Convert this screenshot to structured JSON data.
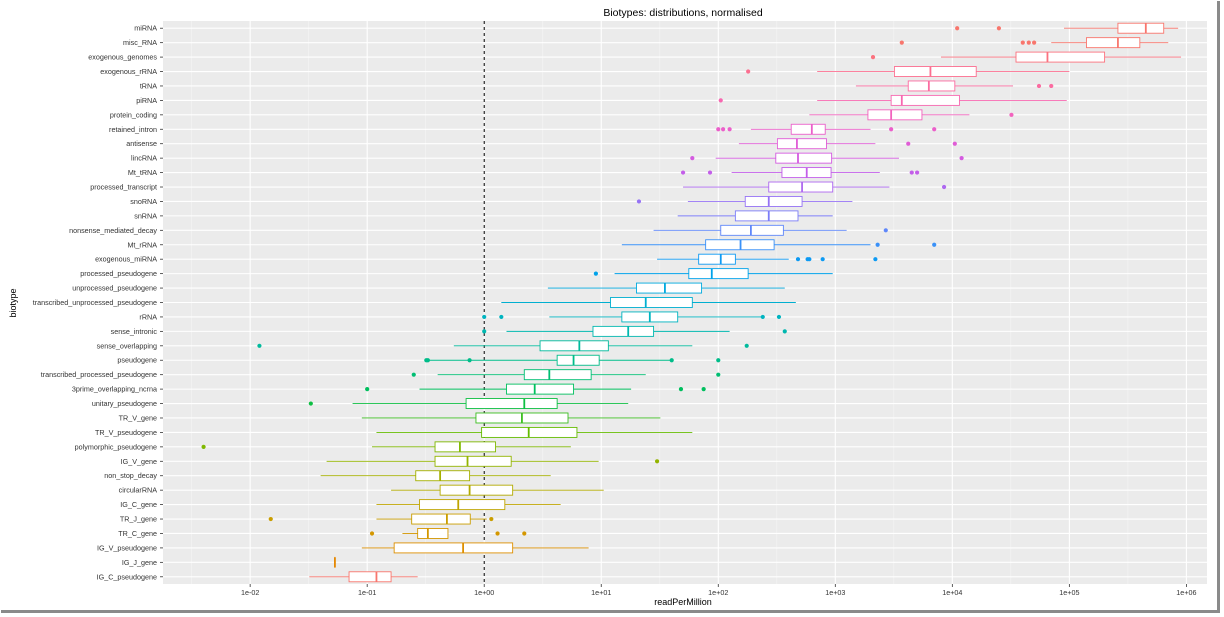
{
  "chart_data": {
    "type": "boxplot",
    "title": "Biotypes: distributions, normalised",
    "xlabel": "readPerMillion",
    "ylabel": "biotype",
    "x_scale": "log10",
    "xlim": [
      0.0018,
      1500000
    ],
    "x_ticks": [
      {
        "value": 0.01,
        "label": "1e-02"
      },
      {
        "value": 0.1,
        "label": "1e-01"
      },
      {
        "value": 1,
        "label": "1e+00"
      },
      {
        "value": 10,
        "label": "1e+01"
      },
      {
        "value": 100,
        "label": "1e+02"
      },
      {
        "value": 1000,
        "label": "1e+03"
      },
      {
        "value": 10000,
        "label": "1e+04"
      },
      {
        "value": 100000,
        "label": "1e+05"
      },
      {
        "value": 1000000,
        "label": "1e+06"
      }
    ],
    "reference_line": {
      "x": 1,
      "style": "dashed"
    },
    "grid": true,
    "legend": "none",
    "background": "#EBEBEB",
    "categories": [
      {
        "name": "miRNA",
        "color": "#F8766D",
        "min": 90000,
        "q1": 260000,
        "median": 450000,
        "q3": 640000,
        "max": 850000,
        "outliers": [
          11000,
          25000
        ]
      },
      {
        "name": "misc_RNA",
        "color": "#F8766D",
        "min": 70000,
        "q1": 140000,
        "median": 260000,
        "q3": 400000,
        "max": 700000,
        "outliers": [
          3700,
          40000,
          45000,
          50000
        ]
      },
      {
        "name": "exogenous_genomes",
        "color": "#FB727F",
        "min": 8000,
        "q1": 35000,
        "median": 65000,
        "q3": 200000,
        "max": 900000,
        "outliers": [
          2100
        ]
      },
      {
        "name": "exogenous_rRNA",
        "color": "#FC6F90",
        "min": 700,
        "q1": 3200,
        "median": 6500,
        "q3": 16000,
        "max": 100000,
        "outliers": [
          180
        ]
      },
      {
        "name": "tRNA",
        "color": "#FB6CA1",
        "min": 1500,
        "q1": 4200,
        "median": 6300,
        "q3": 10500,
        "max": 33000,
        "outliers": [
          55000,
          70000
        ]
      },
      {
        "name": "piRNA",
        "color": "#F767B0",
        "min": 700,
        "q1": 3000,
        "median": 3700,
        "q3": 11500,
        "max": 95000,
        "outliers": [
          105
        ]
      },
      {
        "name": "protein_coding",
        "color": "#F263BE",
        "min": 600,
        "q1": 1900,
        "median": 3000,
        "q3": 5500,
        "max": 14000,
        "outliers": [
          32000
        ]
      },
      {
        "name": "retained_intron",
        "color": "#EB5FCA",
        "min": 190,
        "q1": 420,
        "median": 630,
        "q3": 820,
        "max": 2000,
        "outliers": [
          100,
          110,
          125,
          3000,
          7000
        ]
      },
      {
        "name": "antisense",
        "color": "#E05CD6",
        "min": 150,
        "q1": 320,
        "median": 470,
        "q3": 840,
        "max": 2200,
        "outliers": [
          4200,
          10500
        ]
      },
      {
        "name": "lincRNA",
        "color": "#D45BE0",
        "min": 95,
        "q1": 310,
        "median": 480,
        "q3": 930,
        "max": 3500,
        "outliers": [
          60,
          12000
        ]
      },
      {
        "name": "Mt_tRNA",
        "color": "#C35EE9",
        "min": 130,
        "q1": 350,
        "median": 570,
        "q3": 920,
        "max": 2400,
        "outliers": [
          50,
          85,
          4500,
          5000
        ]
      },
      {
        "name": "processed_transcript",
        "color": "#AE68F0",
        "min": 50,
        "q1": 270,
        "median": 520,
        "q3": 950,
        "max": 2900,
        "outliers": [
          8500
        ]
      },
      {
        "name": "snoRNA",
        "color": "#9673F5",
        "min": 55,
        "q1": 170,
        "median": 270,
        "q3": 520,
        "max": 1400,
        "outliers": [
          21
        ]
      },
      {
        "name": "snRNA",
        "color": "#7C7DF8",
        "min": 45,
        "q1": 140,
        "median": 270,
        "q3": 480,
        "max": 950,
        "outliers": []
      },
      {
        "name": "nonsense_mediated_decay",
        "color": "#5F87FA",
        "min": 28,
        "q1": 105,
        "median": 190,
        "q3": 360,
        "max": 1250,
        "outliers": [
          2700
        ]
      },
      {
        "name": "Mt_rRNA",
        "color": "#3A91F8",
        "min": 15,
        "q1": 78,
        "median": 155,
        "q3": 300,
        "max": 2000,
        "outliers": [
          2300,
          7000
        ]
      },
      {
        "name": "exogenous_miRNA",
        "color": "#0D9AF3",
        "min": 30,
        "q1": 68,
        "median": 105,
        "q3": 140,
        "max": 400,
        "outliers": [
          480,
          580,
          600,
          780,
          2200
        ]
      },
      {
        "name": "processed_pseudogene",
        "color": "#00A2EA",
        "min": 13,
        "q1": 56,
        "median": 88,
        "q3": 180,
        "max": 950,
        "outliers": [
          9
        ]
      },
      {
        "name": "unprocessed_pseudogene",
        "color": "#00A9DE",
        "min": 3.5,
        "q1": 20,
        "median": 35,
        "q3": 72,
        "max": 370,
        "outliers": []
      },
      {
        "name": "transcribed_unprocessed_pseudogene",
        "color": "#00AFD0",
        "min": 1.4,
        "q1": 12,
        "median": 24,
        "q3": 60,
        "max": 460,
        "outliers": []
      },
      {
        "name": "rRNA",
        "color": "#00B4C0",
        "min": 3.6,
        "q1": 15,
        "median": 26,
        "q3": 45,
        "max": 240,
        "outliers": [
          1.0,
          1.4,
          240,
          330
        ]
      },
      {
        "name": "sense_intronic",
        "color": "#00B7AF",
        "min": 1.55,
        "q1": 8.5,
        "median": 17,
        "q3": 28,
        "max": 125,
        "outliers": [
          1.0,
          370
        ]
      },
      {
        "name": "sense_overlapping",
        "color": "#00BA9C",
        "min": 0.55,
        "q1": 3.0,
        "median": 6.5,
        "q3": 11.5,
        "max": 60,
        "outliers": [
          0.012,
          175
        ]
      },
      {
        "name": "pseudogene",
        "color": "#00BC89",
        "min": 0.32,
        "q1": 4.2,
        "median": 5.8,
        "q3": 9.6,
        "max": 40,
        "outliers": [
          0.32,
          0.33,
          0.75,
          40,
          100
        ]
      },
      {
        "name": "transcribed_processed_pseudogene",
        "color": "#00BE73",
        "min": 0.4,
        "q1": 2.2,
        "median": 3.6,
        "q3": 8.2,
        "max": 24,
        "outliers": [
          0.25,
          100
        ]
      },
      {
        "name": "3prime_overlapping_ncrna",
        "color": "#00BF5E",
        "min": 0.28,
        "q1": 1.55,
        "median": 2.7,
        "q3": 5.8,
        "max": 18,
        "outliers": [
          0.1,
          48,
          75
        ]
      },
      {
        "name": "unitary_pseudogene",
        "color": "#0EBF43",
        "min": 0.075,
        "q1": 0.7,
        "median": 2.2,
        "q3": 4.2,
        "max": 17,
        "outliers": [
          0.033
        ]
      },
      {
        "name": "TR_V_gene",
        "color": "#3BBE1F",
        "min": 0.09,
        "q1": 0.85,
        "median": 2.1,
        "q3": 5.2,
        "max": 32,
        "outliers": []
      },
      {
        "name": "TR_V_pseudogene",
        "color": "#64BC00",
        "min": 0.12,
        "q1": 0.95,
        "median": 2.4,
        "q3": 6.2,
        "max": 60,
        "outliers": []
      },
      {
        "name": "polymorphic_pseudogene",
        "color": "#7FB800",
        "min": 0.11,
        "q1": 0.38,
        "median": 0.62,
        "q3": 1.25,
        "max": 5.5,
        "outliers": [
          0.004
        ]
      },
      {
        "name": "IG_V_gene",
        "color": "#93B400",
        "min": 0.045,
        "q1": 0.38,
        "median": 0.72,
        "q3": 1.7,
        "max": 9.5,
        "outliers": [
          30
        ]
      },
      {
        "name": "non_stop_decay",
        "color": "#A4AF00",
        "min": 0.04,
        "q1": 0.26,
        "median": 0.42,
        "q3": 0.75,
        "max": 3.7,
        "outliers": []
      },
      {
        "name": "circularRNA",
        "color": "#B2AA00",
        "min": 0.16,
        "q1": 0.42,
        "median": 0.75,
        "q3": 1.75,
        "max": 10.5,
        "outliers": []
      },
      {
        "name": "IG_C_gene",
        "color": "#BFA500",
        "min": 0.12,
        "q1": 0.28,
        "median": 0.6,
        "q3": 1.5,
        "max": 4.5,
        "outliers": []
      },
      {
        "name": "TR_J_gene",
        "color": "#CA9E00",
        "min": 0.12,
        "q1": 0.24,
        "median": 0.48,
        "q3": 0.76,
        "max": 1.05,
        "outliers": [
          0.015,
          1.15
        ]
      },
      {
        "name": "TR_C_gene",
        "color": "#D49700",
        "min": 0.2,
        "q1": 0.27,
        "median": 0.33,
        "q3": 0.49,
        "max": 0.49,
        "outliers": [
          0.11,
          1.3,
          2.2
        ]
      },
      {
        "name": "IG_V_pseudogene",
        "color": "#DD8F00",
        "min": 0.09,
        "q1": 0.17,
        "median": 0.66,
        "q3": 1.75,
        "max": 7.8,
        "outliers": []
      },
      {
        "name": "IG_J_gene",
        "color": "#E58700",
        "min": 0.053,
        "q1": 0.053,
        "median": 0.053,
        "q3": 0.053,
        "max": 0.053,
        "outliers": []
      },
      {
        "name": "IG_C_pseudogene",
        "color": "#F8766D",
        "min": 0.032,
        "q1": 0.07,
        "median": 0.12,
        "q3": 0.16,
        "max": 0.27,
        "outliers": []
      }
    ]
  }
}
